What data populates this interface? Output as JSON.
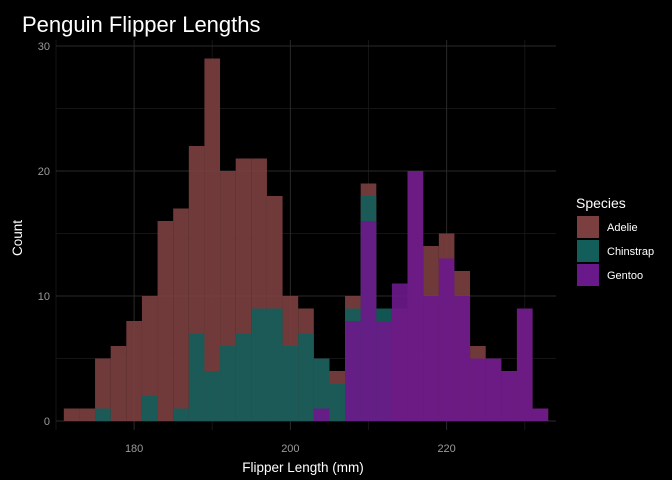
{
  "chart_data": {
    "type": "bar",
    "subtype": "stacked-histogram",
    "title": "Penguin Flipper Lengths",
    "xlabel": "Flipper Length (mm)",
    "ylabel": "Count",
    "xlim": [
      170,
      234
    ],
    "ylim": [
      0,
      30
    ],
    "x_ticks": [
      180,
      200,
      220
    ],
    "y_ticks": [
      0,
      10,
      20,
      30
    ],
    "bin_width": 2,
    "grid": true,
    "legend_position": "right",
    "legend_title": "Species",
    "bins": [
      172,
      174,
      176,
      178,
      180,
      182,
      184,
      186,
      188,
      190,
      192,
      194,
      196,
      198,
      200,
      202,
      204,
      206,
      208,
      210,
      212,
      214,
      216,
      218,
      220,
      222,
      224,
      226,
      228,
      230,
      232
    ],
    "series": [
      {
        "name": "Adelie",
        "color": "#7b3f3f",
        "values": [
          1,
          1,
          4,
          5,
          6,
          9,
          15,
          17,
          24,
          27,
          16,
          18,
          17,
          14,
          8,
          2,
          2,
          1,
          1,
          1,
          0,
          0,
          0,
          0,
          0,
          0,
          0,
          0,
          0,
          0,
          0
        ]
      },
      {
        "name": "Chinstrap",
        "color": "#135d5a",
        "values": [
          0,
          0,
          1,
          0,
          1,
          0,
          1,
          0,
          7,
          0,
          0,
          0,
          9,
          9,
          0,
          0,
          7,
          0,
          0,
          6,
          0,
          0,
          0,
          0,
          0,
          0,
          0,
          0,
          0,
          0,
          0
        ]
      },
      {
        "name": "Gentoo",
        "color": "#6a198a",
        "values": [
          0,
          0,
          0,
          0,
          0,
          0,
          0,
          0,
          0,
          0,
          0,
          0,
          0,
          0,
          0,
          1,
          0,
          0,
          8,
          16,
          8,
          11,
          20,
          10,
          13,
          10,
          5,
          5,
          4,
          9,
          1
        ]
      }
    ],
    "visible_heights": {
      "Adelie": [
        1,
        1,
        5,
        6,
        8,
        10,
        16,
        17,
        22,
        29,
        20,
        21,
        21,
        18,
        10,
        9,
        5,
        4,
        10,
        19,
        8,
        9,
        20,
        14,
        15,
        12,
        6,
        5,
        4,
        9,
        1
      ],
      "Chinstrap": [
        0,
        0,
        1,
        0,
        0,
        2,
        0,
        1,
        7,
        4,
        6,
        7,
        9,
        9,
        6,
        7,
        5,
        3,
        9,
        18,
        9,
        0,
        0,
        0,
        0,
        0,
        0,
        0,
        0,
        0,
        0
      ],
      "Gentoo": [
        0,
        0,
        0,
        0,
        0,
        0,
        0,
        0,
        0,
        0,
        0,
        0,
        0,
        0,
        0,
        0,
        1,
        0,
        8,
        16,
        8,
        11,
        20,
        10,
        13,
        10,
        5,
        5,
        4,
        9,
        1
      ]
    }
  }
}
